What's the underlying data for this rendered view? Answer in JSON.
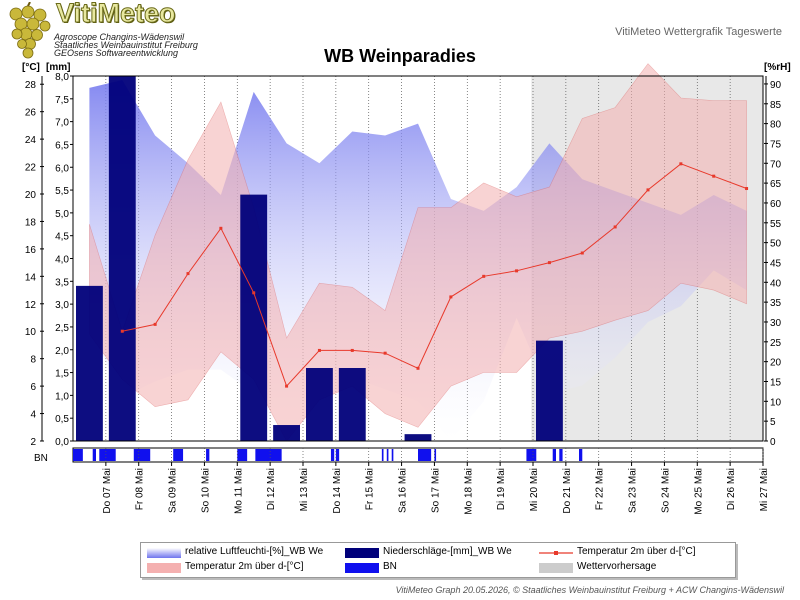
{
  "header": {
    "logo_title": "VitiMeteo",
    "logo_lines": [
      "Agroscope Changins-Wädenswil",
      "Staatliches Weinbauinstitut Freiburg",
      "GEOsens Softwareentwicklung"
    ],
    "right_label": "VitiMeteo Wettergrafik Tageswerte"
  },
  "footer": {
    "text": "VitiMeteo Graph 20.05.2026, © Staatliches Weinbauinstitut Freiburg + ACW Changins-Wädenswil"
  },
  "colors": {
    "humidity": "#6f74ee",
    "precip": "#00007a",
    "temp_line": "#e8392b",
    "temp_band": "#f4b0b0",
    "bn": "#1010ee",
    "forecast": "#cccccc"
  },
  "chart_data": {
    "type": "line",
    "title": "WB Weinparadies",
    "x": [
      "Do 07 Mai",
      "Fr 08 Mai",
      "Sa 09 Mai",
      "So 10 Mai",
      "Mo 11 Mai",
      "Di 12 Mai",
      "Mi 13 Mai",
      "Do 14 Mai",
      "Fr 15 Mai",
      "Sa 16 Mai",
      "So 17 Mai",
      "Mo 18 Mai",
      "Di 19 Mai",
      "Mi 20 Mai",
      "Do 21 Mai",
      "Fr 22 Mai",
      "Sa 23 Mai",
      "So 24 Mai",
      "Mo 25 Mai",
      "Di 26 Mai",
      "Mi 27 Mai"
    ],
    "axes": {
      "temp": {
        "label": "[°C]",
        "range": [
          2,
          28.6
        ],
        "ticks": [
          2,
          4,
          6,
          8,
          10,
          12,
          14,
          16,
          18,
          20,
          22,
          24,
          26,
          28
        ]
      },
      "precip": {
        "label": "[mm]",
        "range": [
          0,
          8.0
        ],
        "ticks": [
          "0,0",
          "0,5",
          "1,0",
          "1,5",
          "2,0",
          "2,5",
          "3,0",
          "3,5",
          "4,0",
          "4,5",
          "5,0",
          "5,5",
          "6,0",
          "6,5",
          "7,0",
          "7,5",
          "8,0"
        ]
      },
      "humidity": {
        "label": "[%rH]",
        "range": [
          0,
          92
        ],
        "ticks": [
          0,
          5,
          10,
          15,
          20,
          25,
          30,
          35,
          40,
          45,
          50,
          55,
          60,
          65,
          70,
          75,
          80,
          85,
          90
        ]
      }
    },
    "grid": true,
    "forecast_start": "Mi 20 Mai",
    "bn_label": "BN",
    "series": [
      {
        "name": "relative Luftfeuchti-[%]_WB We",
        "type": "area",
        "x": [
          0.5,
          1.5,
          2.5,
          3.5,
          4.5,
          5.5,
          6.5,
          7.5,
          8.5,
          9.5,
          10.5,
          11.5,
          12.5,
          13.5,
          14.5,
          15.5,
          16.5,
          17.5,
          18.5,
          19.5,
          20.5
        ],
        "max": [
          89,
          91,
          77,
          70,
          62,
          88,
          75,
          70,
          78,
          77,
          80,
          61,
          58,
          64,
          75,
          66,
          63,
          60,
          57,
          62,
          58
        ],
        "min": [
          29,
          11,
          15,
          18,
          18,
          12,
          0,
          9,
          16,
          13,
          10,
          0,
          10,
          31,
          12,
          14,
          21,
          30,
          34,
          43,
          38
        ]
      },
      {
        "name": "Temperatur 2m über d-[°C]",
        "type": "band",
        "x": [
          0.5,
          1.5,
          2.5,
          3.5,
          4.5,
          5.5,
          6.5,
          7.5,
          8.5,
          9.5,
          10.5,
          11.5,
          12.5,
          13.5,
          14.5,
          15.5,
          16.5,
          17.5,
          18.5,
          19.5,
          20.5
        ],
        "max": [
          17.8,
          10.0,
          17.0,
          22.5,
          26.7,
          19.0,
          9.5,
          13.5,
          13.2,
          11.5,
          19.0,
          19.0,
          20.8,
          19.8,
          20.5,
          25.5,
          26.3,
          29.5,
          27.0,
          26.8,
          26.8
        ],
        "min": [
          9.8,
          6.5,
          4.5,
          5.0,
          8.5,
          6.5,
          2.0,
          5.0,
          6.0,
          4.0,
          3.0,
          6.0,
          7.0,
          7.0,
          9.5,
          10.0,
          10.8,
          11.5,
          13.5,
          13.0,
          12.0
        ]
      },
      {
        "name": "Temperatur 2m über d-[°C]",
        "type": "line",
        "x": [
          1.5,
          2.5,
          3.5,
          4.5,
          5.5,
          6.5,
          7.5,
          8.5,
          9.5,
          10.5,
          11.5,
          12.5,
          13.5,
          14.5,
          15.5,
          16.5,
          17.5,
          18.5,
          19.5,
          20.5
        ],
        "values": [
          10.0,
          10.5,
          14.2,
          17.5,
          12.8,
          6.0,
          8.6,
          8.6,
          8.4,
          7.3,
          12.5,
          14.0,
          14.4,
          15.0,
          15.7,
          17.6,
          20.3,
          22.2,
          21.3,
          20.4
        ]
      },
      {
        "name": "Niederschläge-[mm]_WB We",
        "type": "bar",
        "x": [
          0.0,
          1.0,
          5.0,
          6.0,
          7.0,
          8.0,
          10.0,
          14.0
        ],
        "values": [
          3.4,
          8.0,
          5.4,
          0.35,
          1.6,
          1.6,
          0.15,
          2.2
        ]
      },
      {
        "name": "BN",
        "type": "events",
        "intervals": [
          [
            0.0,
            0.3
          ],
          [
            0.6,
            0.7
          ],
          [
            0.8,
            1.3
          ],
          [
            1.85,
            2.35
          ],
          [
            3.05,
            3.35
          ],
          [
            4.05,
            4.15
          ],
          [
            5.0,
            5.3
          ],
          [
            5.55,
            6.35
          ],
          [
            7.85,
            7.95
          ],
          [
            8.0,
            8.1
          ],
          [
            9.4,
            9.45
          ],
          [
            9.55,
            9.6
          ],
          [
            9.7,
            9.75
          ],
          [
            10.5,
            10.9
          ],
          [
            11.0,
            11.05
          ],
          [
            13.8,
            14.1
          ],
          [
            14.6,
            14.7
          ],
          [
            14.8,
            14.9
          ],
          [
            15.4,
            15.5
          ]
        ]
      },
      {
        "name": "Wettervorhersage",
        "type": "region"
      }
    ]
  }
}
